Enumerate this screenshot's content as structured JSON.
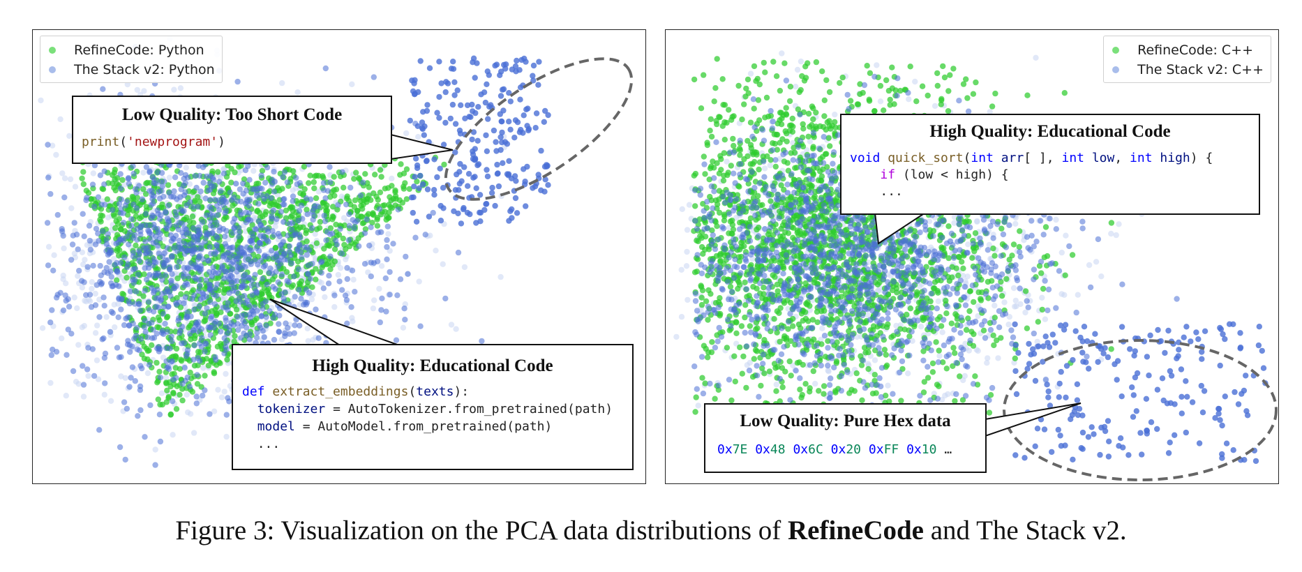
{
  "colors": {
    "refinecode": "#3fd13f",
    "stack": "#4a6fd6",
    "ellipse": "#666666"
  },
  "left_panel": {
    "legend": [
      {
        "label": "RefineCode: Python",
        "color": "#3fd13f"
      },
      {
        "label": "The Stack v2: Python",
        "color": "#9db3e8"
      }
    ],
    "callout_low": {
      "title": "Low Quality: Too Short Code",
      "code": {
        "fn": "print",
        "open": "(",
        "str": "'newprogram'",
        "close": ")"
      }
    },
    "callout_high": {
      "title": "High Quality: Educational Code",
      "line1": {
        "kw": "def",
        "fn": "extract_embeddings",
        "open": "(",
        "var": "texts",
        "close": "):"
      },
      "line2": {
        "var": "tokenizer",
        "rest": " = AutoTokenizer.from_pretrained(path)"
      },
      "line3": {
        "var": "model",
        "rest": " = AutoModel.from_pretrained(path)"
      },
      "line4": "..."
    }
  },
  "right_panel": {
    "legend": [
      {
        "label": "RefineCode: C++",
        "color": "#3fd13f"
      },
      {
        "label": "The Stack v2: C++",
        "color": "#9db3e8"
      }
    ],
    "callout_high": {
      "title": "High Quality: Educational Code",
      "line1": {
        "kw1": "void",
        "fn": "quick_sort",
        "p1": "(",
        "kw2": "int",
        "v1": "arr",
        "p2": "[ ], ",
        "kw3": "int",
        "v2": "low",
        "p3": ", ",
        "kw4": "int",
        "v3": "high",
        "p4": ") {"
      },
      "line2": {
        "ctl": "if",
        "rest": " (low < high) {"
      },
      "line3": "..."
    },
    "callout_low": {
      "title": "Low Quality: Pure Hex data",
      "hex": [
        {
          "prefix": "0x",
          "digits": "7E"
        },
        {
          "prefix": "0x",
          "digits": "48"
        },
        {
          "prefix": "0x",
          "digits": "6C"
        },
        {
          "prefix": "0x",
          "digits": "20"
        },
        {
          "prefix": "0x",
          "digits": "FF"
        },
        {
          "prefix": "0x",
          "digits": "10"
        }
      ],
      "tail": "…"
    }
  },
  "caption": {
    "prefix": "Figure 3: Visualization on the PCA data distributions of ",
    "bold": "RefineCode",
    "suffix": " and The Stack v2."
  }
}
